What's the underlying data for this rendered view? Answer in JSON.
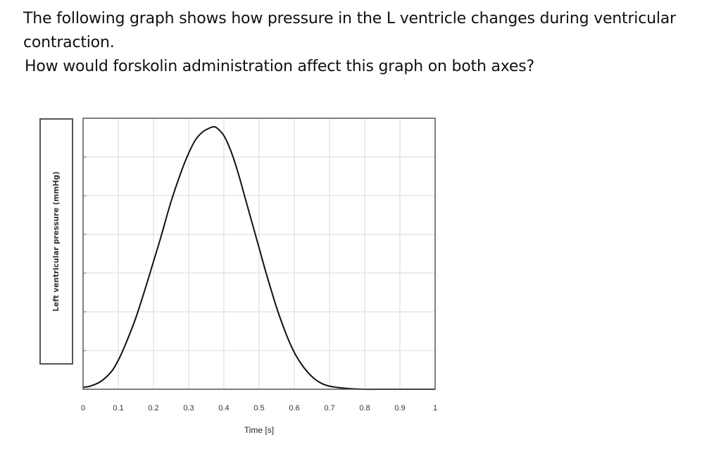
{
  "question": {
    "line1": "The following graph shows how pressure in the L ventricle changes during ventricular contraction.",
    "line2": "How would forskolin administration affect this graph on both axes?"
  },
  "chart_data": {
    "type": "line",
    "title": "",
    "xlabel": "Time [s]",
    "ylabel": "Left ventricular pressure (mmHg)",
    "xlim": [
      0,
      1
    ],
    "ylim": [
      0,
      7
    ],
    "x_ticks": [
      "0",
      "0.1",
      "0.2",
      "0.3",
      "0.4",
      "0.5",
      "0.6",
      "0.7",
      "0.8",
      "0.9",
      "1"
    ],
    "y_tick_labels_shown": false,
    "grid": true,
    "legend": "none",
    "series": [
      {
        "x": [
          0,
          0.02,
          0.05,
          0.08,
          0.1,
          0.12,
          0.15,
          0.18,
          0.2,
          0.22,
          0.25,
          0.28,
          0.3,
          0.32,
          0.34,
          0.36,
          0.37,
          0.38,
          0.4,
          0.42,
          0.44,
          0.46,
          0.48,
          0.5,
          0.52,
          0.55,
          0.58,
          0.6,
          0.62,
          0.64,
          0.66,
          0.68,
          0.7,
          0.72,
          0.75,
          0.8,
          0.85,
          0.9,
          0.95,
          1.0
        ],
        "y": [
          0.05,
          0.08,
          0.2,
          0.45,
          0.75,
          1.15,
          1.85,
          2.7,
          3.3,
          3.9,
          4.85,
          5.65,
          6.1,
          6.45,
          6.65,
          6.75,
          6.78,
          6.75,
          6.55,
          6.15,
          5.6,
          4.95,
          4.3,
          3.65,
          3.0,
          2.1,
          1.35,
          0.95,
          0.65,
          0.42,
          0.25,
          0.14,
          0.08,
          0.05,
          0.02,
          0.0,
          0.0,
          0.0,
          0.0,
          0.0
        ],
        "color": "#111111"
      }
    ]
  }
}
